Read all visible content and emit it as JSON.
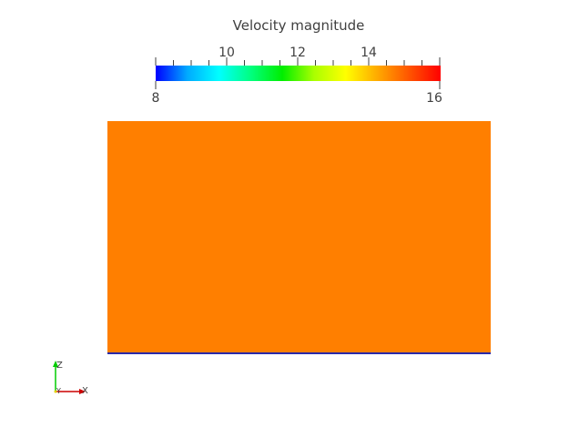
{
  "colorbar": {
    "title": "Velocity magnitude",
    "min": 8,
    "max": 16,
    "min_label": "8",
    "max_label": "16",
    "major_ticks": [
      {
        "value": 10,
        "label": "10"
      },
      {
        "value": 12,
        "label": "12"
      },
      {
        "value": 14,
        "label": "14"
      }
    ],
    "minor_tick_step": 0.5,
    "colormap": [
      "#0000ff",
      "#00aaff",
      "#00ffff",
      "#00ff80",
      "#00ee00",
      "#aaff00",
      "#ffff00",
      "#ffaa00",
      "#ff5500",
      "#ff0000"
    ]
  },
  "field": {
    "color": "#ff7f00",
    "edge_color": "#2a2aa8"
  },
  "axes": {
    "z_label": "Z",
    "y_label": "Y",
    "x_label": "X",
    "z_color": "#00cc00",
    "x_color": "#cc0000",
    "y_color": "#e0d000"
  }
}
